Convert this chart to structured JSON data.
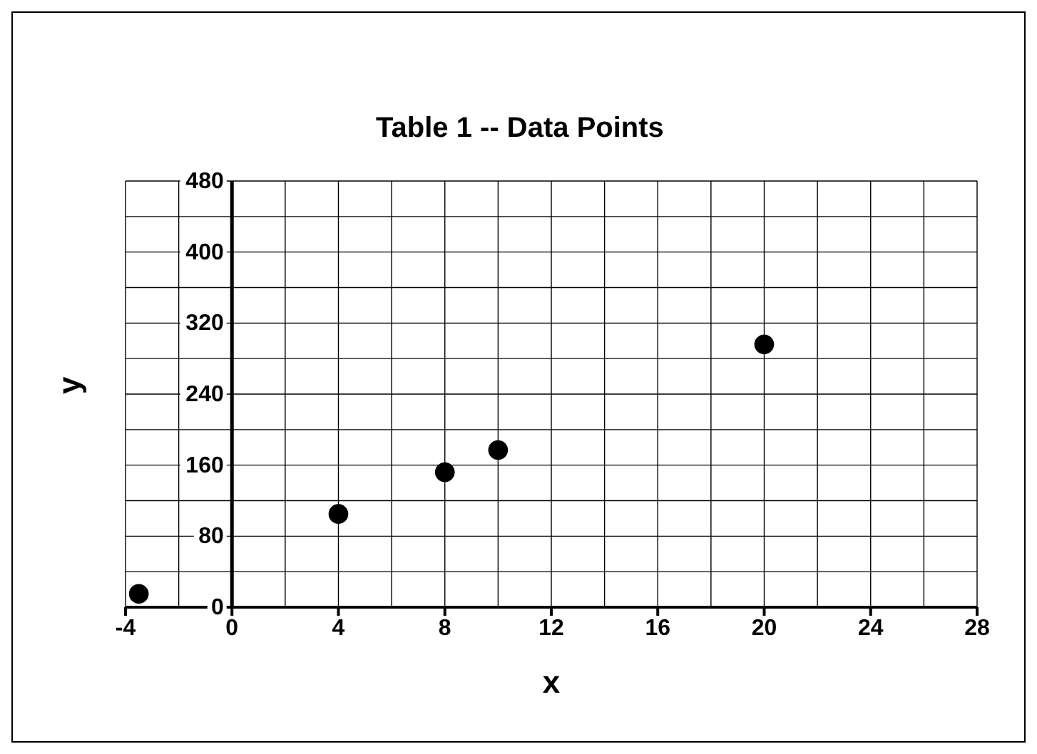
{
  "chart_data": {
    "type": "scatter",
    "title": "Table 1 -- Data Points",
    "xlabel": "x",
    "ylabel": "y",
    "x": [
      -3.5,
      4,
      8,
      10,
      20
    ],
    "series": [
      {
        "color": "#000000",
        "values": [
          15,
          105,
          152,
          177,
          296
        ]
      }
    ],
    "xlim": [
      -4,
      28
    ],
    "xticks": [
      -4,
      0,
      4,
      8,
      12,
      16,
      20,
      24,
      28
    ],
    "ylim": [
      0,
      480
    ],
    "yticks": [
      0,
      80,
      160,
      240,
      320,
      400,
      480
    ],
    "grid": true,
    "marker": "circle"
  }
}
